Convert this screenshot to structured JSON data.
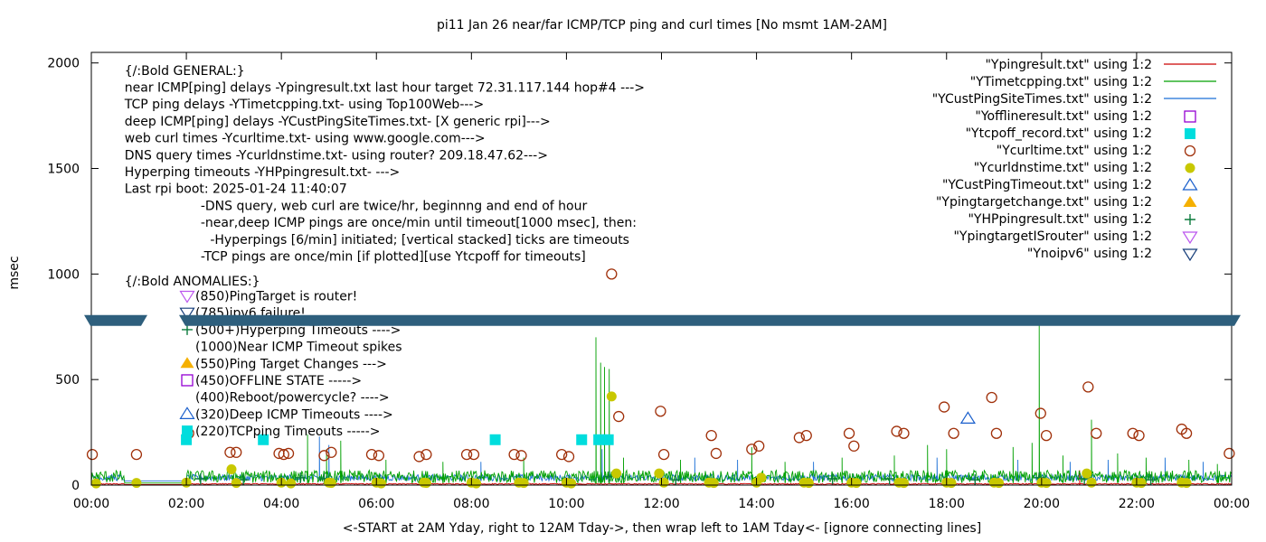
{
  "chart_data": {
    "type": "line",
    "title": "pi11 Jan 26  near/far ICMP/TCP ping and curl times [No msmt 1AM-2AM]",
    "xlabel": "<-START at 2AM Yday, right to 12AM Tday->, then wrap left to 1AM Tday<- [ignore connecting lines]",
    "ylabel": "msec",
    "xlim": [
      0,
      24
    ],
    "ylim": [
      0,
      2050
    ],
    "x_ticks": [
      {
        "v": 0,
        "label": "00:00"
      },
      {
        "v": 2,
        "label": "02:00"
      },
      {
        "v": 4,
        "label": "04:00"
      },
      {
        "v": 6,
        "label": "06:00"
      },
      {
        "v": 8,
        "label": "08:00"
      },
      {
        "v": 10,
        "label": "10:00"
      },
      {
        "v": 12,
        "label": "12:00"
      },
      {
        "v": 14,
        "label": "14:00"
      },
      {
        "v": 16,
        "label": "16:00"
      },
      {
        "v": 18,
        "label": "18:00"
      },
      {
        "v": 20,
        "label": "20:00"
      },
      {
        "v": 22,
        "label": "22:00"
      },
      {
        "v": 24,
        "label": "00:00"
      }
    ],
    "y_ticks": [
      {
        "v": 0,
        "label": "0"
      },
      {
        "v": 500,
        "label": "500"
      },
      {
        "v": 1000,
        "label": "1000"
      },
      {
        "v": 1500,
        "label": "1500"
      },
      {
        "v": 2000,
        "label": "2000"
      }
    ],
    "grid": false,
    "legend_position": "top-right",
    "axis_break": {
      "y": 780
    },
    "annotation_lines": [
      {
        "x": 0.7,
        "y": 1965,
        "text": "{/:Bold GENERAL:}"
      },
      {
        "x": 0.7,
        "y": 1885,
        "text": "near ICMP[ping] delays -Ypingresult.txt last hour target 72.31.117.144 hop#4 --->"
      },
      {
        "x": 0.7,
        "y": 1805,
        "text": "TCP ping delays -YTimetcpping.txt- using Top100Web--->"
      },
      {
        "x": 0.7,
        "y": 1725,
        "text": "deep ICMP[ping] delays -YCustPingSiteTimes.txt- [X generic rpi]--->"
      },
      {
        "x": 0.7,
        "y": 1645,
        "text": "web curl times -Ycurltime.txt- using www.google.com--->"
      },
      {
        "x": 0.7,
        "y": 1565,
        "text": "DNS query times -Ycurldnstime.txt- using router? 209.18.47.62--->"
      },
      {
        "x": 0.7,
        "y": 1485,
        "text": "Hyperping timeouts -YHPpingresult.txt- --->"
      },
      {
        "x": 0.7,
        "y": 1405,
        "text": "Last rpi boot: 2025-01-24 11:40:07"
      },
      {
        "x": 2.3,
        "y": 1325,
        "text": "-DNS query, web curl are twice/hr, beginnng and end of hour"
      },
      {
        "x": 2.3,
        "y": 1245,
        "text": "-near,deep ICMP pings are once/min until timeout[1000 msec], then:"
      },
      {
        "x": 2.5,
        "y": 1165,
        "text": "-Hyperpings [6/min] initiated; [vertical stacked] ticks are timeouts"
      },
      {
        "x": 2.3,
        "y": 1085,
        "text": "-TCP pings are once/min [if plotted][use Ytcpoff for timeouts]"
      },
      {
        "x": 0.7,
        "y": 968,
        "text": "{/:Bold ANOMALIES:}"
      }
    ],
    "anomaly_lines": [
      {
        "y": 888,
        "marker": "tri-down-violet",
        "text": "(850)PingTarget is router!"
      },
      {
        "y": 808,
        "marker": "tri-down-navy",
        "text": "(785)ipv6 failure!"
      },
      {
        "y": 728,
        "marker": "plus-green",
        "text": "(500+)Hyperping Timeouts ---->"
      },
      {
        "y": 648,
        "marker": "",
        "text": "(1000)Near ICMP Timeout spikes"
      },
      {
        "y": 568,
        "marker": "tri-up-orange",
        "text": "(550)Ping Target Changes --->"
      },
      {
        "y": 488,
        "marker": "square-purple",
        "text": "(450)OFFLINE STATE ----->"
      },
      {
        "y": 408,
        "marker": "",
        "text": "(400)Reboot/powercycle? ---->"
      },
      {
        "y": 328,
        "marker": "tri-up-blue",
        "text": "(320)Deep ICMP Timeouts ---->"
      },
      {
        "y": 248,
        "marker": "square-cyan",
        "text": "(220)TCPping Timeouts ----->"
      }
    ],
    "legend": [
      {
        "label": "\"Ypingresult.txt\" using 1:2",
        "kind": "line",
        "color": "#cc0000"
      },
      {
        "label": "\"YTimetcpping.txt\" using 1:2",
        "kind": "line",
        "color": "#00a000"
      },
      {
        "label": "\"YCustPingSiteTimes.txt\" using 1:2",
        "kind": "line",
        "color": "#1a6fd6"
      },
      {
        "label": "\"Yofflineresult.txt\" using 1:2",
        "kind": "square-open",
        "color": "#9400d3"
      },
      {
        "label": "\"Ytcpoff_record.txt\" using 1:2",
        "kind": "square-filled",
        "color": "#00dddd"
      },
      {
        "label": "\"Ycurltime.txt\" using 1:2",
        "kind": "circle-open",
        "color": "#a0300a"
      },
      {
        "label": "\"Ycurldnstime.txt\" using 1:2",
        "kind": "circle-filled",
        "color": "#c8c800"
      },
      {
        "label": "\"YCustPingTimeout.txt\" using 1:2",
        "kind": "tri-up-open",
        "color": "#1a5fcc"
      },
      {
        "label": "\"Ypingtargetchange.txt\" using 1:2",
        "kind": "tri-up-filled",
        "color": "#f5b000"
      },
      {
        "label": "\"YHPpingresult.txt\" using 1:2",
        "kind": "plus",
        "color": "#0a7a3c"
      },
      {
        "label": "\"YpingtargetISrouter\" using 1:2",
        "kind": "tri-down-open",
        "color": "#bb55ee"
      },
      {
        "label": "\"Ynoipv6\" using 1:2",
        "kind": "tri-down-open",
        "color": "#153d7a"
      }
    ],
    "series": [
      {
        "name": "\"Ycurltime.txt\" using 1:2",
        "kind": "circle-open",
        "color": "#a0300a",
        "x": [
          0.02,
          0.95,
          2.05,
          2.92,
          3.05,
          3.95,
          4.05,
          4.15,
          4.9,
          5.05,
          5.9,
          6.05,
          6.9,
          7.05,
          7.9,
          8.05,
          8.9,
          9.05,
          9.9,
          10.05,
          10.95,
          11.1,
          11.98,
          12.05,
          13.05,
          13.15,
          13.9,
          14.05,
          14.9,
          15.05,
          15.95,
          16.05,
          16.95,
          17.1,
          17.95,
          18.15,
          18.95,
          19.05,
          19.98,
          20.1,
          20.98,
          21.15,
          21.92,
          22.05,
          22.95,
          23.05,
          23.95
        ],
        "y": [
          145,
          145,
          245,
          155,
          155,
          150,
          145,
          150,
          140,
          155,
          145,
          140,
          135,
          145,
          145,
          145,
          145,
          140,
          145,
          135,
          1000,
          325,
          350,
          145,
          235,
          150,
          170,
          185,
          225,
          235,
          245,
          185,
          255,
          245,
          370,
          245,
          415,
          245,
          340,
          235,
          465,
          245,
          245,
          235,
          265,
          245,
          150
        ]
      },
      {
        "name": "\"Ycurldnstime.txt\" using 1:2",
        "kind": "circle-filled",
        "color": "#c8c800",
        "x": [
          0.1,
          0.95,
          2.0,
          2.95,
          3.05,
          4.0,
          4.2,
          5.0,
          5.05,
          6.0,
          6.1,
          7.0,
          7.05,
          8.0,
          8.1,
          9.0,
          9.1,
          10.0,
          10.1,
          10.95,
          11.05,
          11.95,
          12.05,
          13.0,
          13.1,
          14.0,
          14.1,
          15.0,
          15.1,
          16.0,
          16.1,
          17.0,
          17.1,
          18.0,
          18.1,
          19.0,
          19.1,
          20.0,
          20.1,
          20.95,
          21.05,
          22.0,
          22.1,
          22.95,
          23.05
        ],
        "y": [
          8,
          10,
          12,
          75,
          10,
          12,
          8,
          12,
          10,
          12,
          8,
          12,
          10,
          12,
          8,
          12,
          10,
          12,
          8,
          420,
          55,
          55,
          12,
          12,
          10,
          12,
          35,
          12,
          10,
          12,
          10,
          12,
          10,
          12,
          10,
          12,
          10,
          12,
          10,
          55,
          12,
          12,
          10,
          12,
          10
        ]
      },
      {
        "name": "\"Ytcpoff_record.txt\" using 1:2",
        "kind": "square-filled",
        "color": "#00dddd",
        "x": [
          2.0,
          3.62,
          8.5,
          10.32,
          10.68,
          10.88
        ],
        "y": [
          215,
          215,
          215,
          215,
          215,
          215
        ]
      },
      {
        "name": "\"YCustPingTimeout.txt\" using 1:2",
        "kind": "tri-up-open",
        "color": "#1a5fcc",
        "x": [
          18.45
        ],
        "y": [
          315
        ]
      }
    ],
    "line_series": [
      {
        "name": "\"YTimetcpping.txt\" using 1:2",
        "color": "#00a000",
        "baseline": [
          10,
          70
        ],
        "spikes": [
          [
            4.55,
            240
          ],
          [
            4.95,
            170
          ],
          [
            5.25,
            210
          ],
          [
            6.2,
            120
          ],
          [
            7.4,
            110
          ],
          [
            9.1,
            130
          ],
          [
            10.62,
            700
          ],
          [
            10.72,
            580
          ],
          [
            10.8,
            560
          ],
          [
            10.9,
            550
          ],
          [
            11.2,
            130
          ],
          [
            12.4,
            120
          ],
          [
            13.9,
            180
          ],
          [
            14.6,
            110
          ],
          [
            15.8,
            130
          ],
          [
            16.9,
            140
          ],
          [
            17.6,
            190
          ],
          [
            18.0,
            170
          ],
          [
            19.4,
            180
          ],
          [
            19.8,
            200
          ],
          [
            19.95,
            760
          ],
          [
            20.45,
            140
          ],
          [
            21.05,
            310
          ],
          [
            21.6,
            150
          ],
          [
            22.2,
            130
          ],
          [
            23.1,
            120
          ],
          [
            23.7,
            100
          ]
        ]
      },
      {
        "name": "\"YCustPingSiteTimes.txt\" using 1:2",
        "color": "#1a6fd6",
        "baseline": [
          20,
          50
        ],
        "spikes": [
          [
            4.8,
            230
          ],
          [
            5.0,
            190
          ],
          [
            8.2,
            110
          ],
          [
            10.75,
            170
          ],
          [
            12.7,
            130
          ],
          [
            13.6,
            120
          ],
          [
            15.2,
            110
          ],
          [
            17.8,
            130
          ],
          [
            19.5,
            120
          ],
          [
            20.6,
            110
          ],
          [
            21.4,
            120
          ],
          [
            22.6,
            130
          ],
          [
            23.4,
            110
          ]
        ]
      },
      {
        "name": "\"Ypingresult.txt\" using 1:2",
        "color": "#cc0000",
        "baseline": [
          3,
          8
        ],
        "spikes": [
          [
            20.8,
            70
          ],
          [
            21.0,
            60
          ]
        ]
      }
    ],
    "hp_ticks_x": [
      2.3,
      3.2,
      4.4,
      4.9,
      10.9,
      12.3,
      15.6,
      16.8,
      18.6,
      19.95,
      20.9,
      22.3
    ],
    "hp_ticks_y": [
      30,
      25,
      35,
      30,
      40,
      25,
      30,
      30,
      25,
      35,
      30,
      25
    ]
  }
}
